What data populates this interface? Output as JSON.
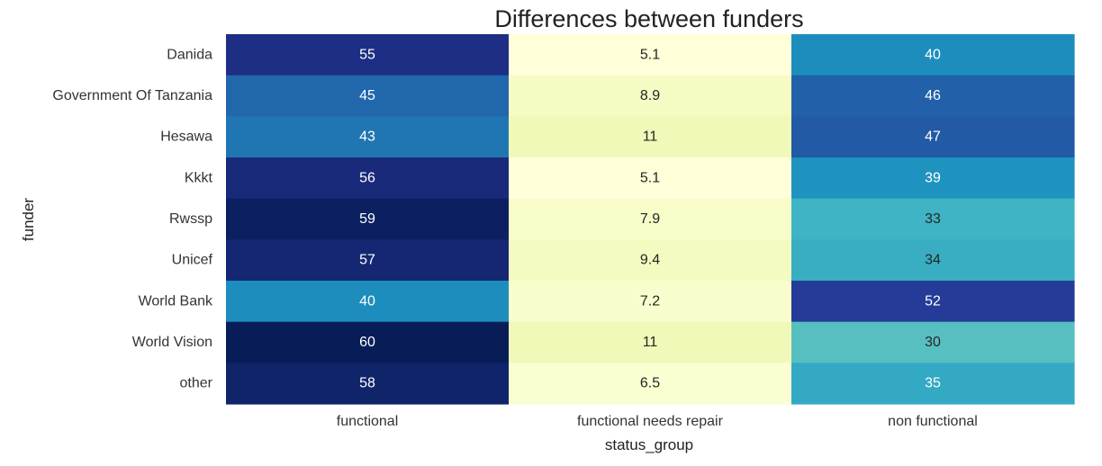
{
  "chart_data": {
    "type": "heatmap",
    "title": "Differences between funders",
    "xlabel": "status_group",
    "ylabel": "funder",
    "columns": [
      "functional",
      "functional needs repair",
      "non functional"
    ],
    "rows": [
      "Danida",
      "Government Of Tanzania",
      "Hesawa",
      "Kkkt",
      "Rwssp",
      "Unicef",
      "World Bank",
      "World Vision",
      "other"
    ],
    "values": [
      [
        55,
        5.1,
        40
      ],
      [
        45,
        8.9,
        46
      ],
      [
        43,
        11,
        47
      ],
      [
        56,
        5.1,
        39
      ],
      [
        59,
        7.9,
        33
      ],
      [
        57,
        9.4,
        34
      ],
      [
        40,
        7.2,
        52
      ],
      [
        60,
        11,
        30
      ],
      [
        58,
        6.5,
        35
      ]
    ],
    "colormap": "YlGnBu",
    "legend": "none"
  }
}
